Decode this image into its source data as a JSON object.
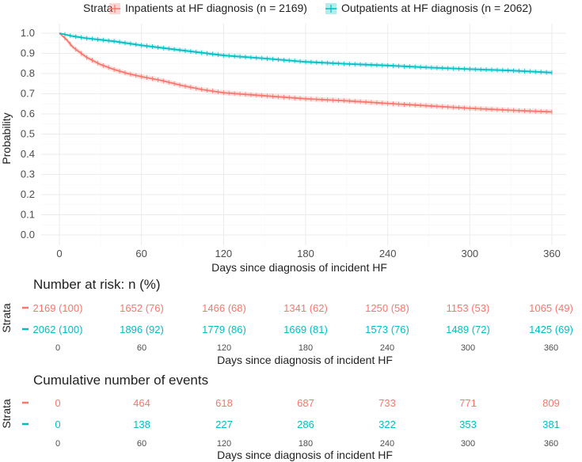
{
  "legend": {
    "title": "Strata",
    "items": [
      {
        "label": "Inpatients at HF diagnosis (n = 2169)",
        "color": "#F8766D"
      },
      {
        "label": "Outpatients at HF diagnosis (n = 2062)",
        "color": "#00BFC4"
      }
    ]
  },
  "chart_data": {
    "type": "line",
    "subtype": "kaplan-meier survival curve with confidence bands",
    "xlabel": "Days since diagnosis of incident HF",
    "ylabel": "Probability",
    "xlim": [
      0,
      360
    ],
    "ylim": [
      0,
      1
    ],
    "x_ticks": [
      0,
      60,
      120,
      180,
      240,
      300,
      360
    ],
    "y_ticks": [
      "0.0",
      "0.1",
      "0.2",
      "0.3",
      "0.4",
      "0.5",
      "0.6",
      "0.7",
      "0.8",
      "0.9",
      "1.0"
    ],
    "grid": true,
    "legend_position": "top",
    "series": [
      {
        "name": "Inpatients at HF diagnosis (n = 2169)",
        "color": "#F8766D",
        "x": [
          0,
          5,
          10,
          20,
          30,
          40,
          50,
          60,
          75,
          90,
          105,
          120,
          150,
          180,
          210,
          240,
          270,
          300,
          330,
          360
        ],
        "y": [
          1.0,
          0.97,
          0.93,
          0.88,
          0.845,
          0.82,
          0.8,
          0.785,
          0.765,
          0.74,
          0.72,
          0.705,
          0.69,
          0.675,
          0.665,
          0.652,
          0.64,
          0.628,
          0.618,
          0.61
        ],
        "ci_halfwidth": 0.012
      },
      {
        "name": "Outpatients at HF diagnosis (n = 2062)",
        "color": "#00BFC4",
        "x": [
          0,
          10,
          20,
          40,
          60,
          90,
          120,
          150,
          180,
          210,
          240,
          270,
          300,
          330,
          360
        ],
        "y": [
          1.0,
          0.985,
          0.975,
          0.96,
          0.94,
          0.915,
          0.89,
          0.875,
          0.858,
          0.848,
          0.84,
          0.83,
          0.822,
          0.815,
          0.805
        ],
        "ci_halfwidth": 0.01
      }
    ]
  },
  "risk_table": {
    "title": "Number at risk: n (%)",
    "strata_label": "Strata",
    "xlabel": "Days since diagnosis of incident HF",
    "x_ticks": [
      "0",
      "60",
      "120",
      "180",
      "240",
      "300",
      "360"
    ],
    "rows": [
      {
        "color": "#F8766D",
        "values": [
          "2169 (100)",
          "1652 (76)",
          "1466 (68)",
          "1341 (62)",
          "1250 (58)",
          "1153 (53)",
          "1065 (49)"
        ]
      },
      {
        "color": "#00BFC4",
        "values": [
          "2062 (100)",
          "1896 (92)",
          "1779 (86)",
          "1669 (81)",
          "1573 (76)",
          "1489 (72)",
          "1425 (69)"
        ]
      }
    ]
  },
  "events_table": {
    "title": "Cumulative number of events",
    "strata_label": "Strata",
    "xlabel": "Days since diagnosis of incident HF",
    "x_ticks": [
      "0",
      "60",
      "120",
      "180",
      "240",
      "300",
      "360"
    ],
    "rows": [
      {
        "color": "#F8766D",
        "values": [
          "0",
          "464",
          "618",
          "687",
          "733",
          "771",
          "809"
        ]
      },
      {
        "color": "#00BFC4",
        "values": [
          "0",
          "138",
          "227",
          "286",
          "322",
          "353",
          "381"
        ]
      }
    ]
  }
}
